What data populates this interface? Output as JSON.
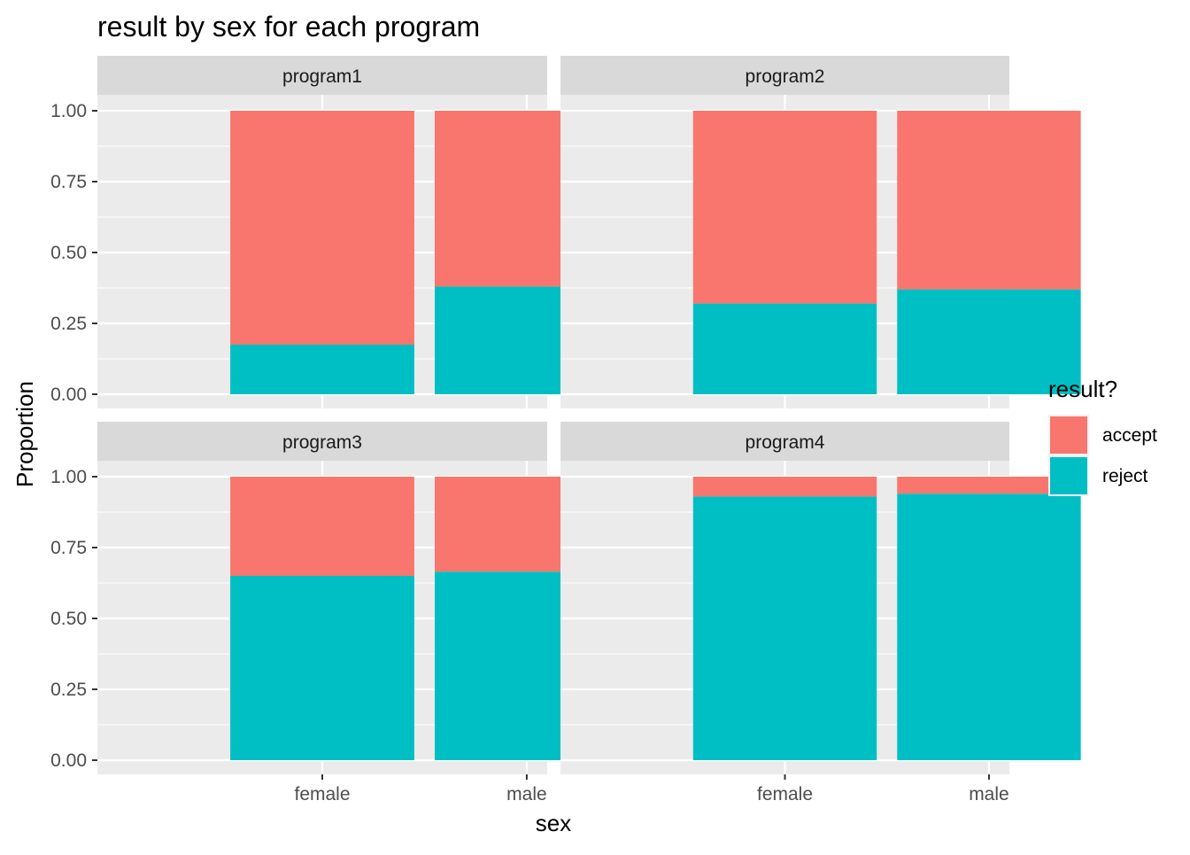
{
  "chart_data": {
    "type": "bar",
    "stacked": true,
    "title": "result by sex for each program",
    "xlabel": "sex",
    "ylabel": "Proportion",
    "ylim": [
      0,
      1
    ],
    "yticks": [
      "0.00",
      "0.25",
      "0.50",
      "0.75",
      "1.00"
    ],
    "categories": [
      "female",
      "male"
    ],
    "legend": {
      "title": "result?",
      "position": "right",
      "entries": [
        {
          "name": "accept",
          "color": "#F8766D"
        },
        {
          "name": "reject",
          "color": "#00BFC4"
        }
      ]
    },
    "panels": [
      {
        "label": "program1",
        "series": [
          {
            "name": "reject",
            "values": [
              0.175,
              0.38
            ]
          },
          {
            "name": "accept",
            "values": [
              0.825,
              0.62
            ]
          }
        ]
      },
      {
        "label": "program2",
        "series": [
          {
            "name": "reject",
            "values": [
              0.32,
              0.37
            ]
          },
          {
            "name": "accept",
            "values": [
              0.68,
              0.63
            ]
          }
        ]
      },
      {
        "label": "program3",
        "series": [
          {
            "name": "reject",
            "values": [
              0.65,
              0.665
            ]
          },
          {
            "name": "accept",
            "values": [
              0.35,
              0.335
            ]
          }
        ]
      },
      {
        "label": "program4",
        "series": [
          {
            "name": "reject",
            "values": [
              0.93,
              0.94
            ]
          },
          {
            "name": "accept",
            "values": [
              0.07,
              0.06
            ]
          }
        ]
      }
    ],
    "grid": true,
    "colors": {
      "panel_bg": "#EBEBEB",
      "strip_bg": "#D9D9D9",
      "grid": "#FFFFFF"
    }
  }
}
